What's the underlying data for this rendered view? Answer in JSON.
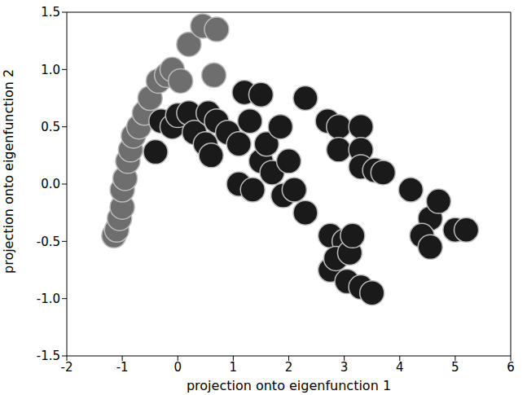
{
  "chart_data": {
    "type": "scatter",
    "x_label": "projection onto eigenfunction 1",
    "y_label": "projection onto eigenfunction 2",
    "marker": "circle",
    "grid": false,
    "x": [
      -1.15,
      -1.1,
      -1.05,
      -1.0,
      -1.0,
      -0.95,
      -0.9,
      -0.85,
      -0.8,
      -0.7,
      -0.6,
      -0.5,
      -0.35,
      -0.2,
      -0.1,
      0.2,
      0.45,
      0.7,
      0.65,
      0.05,
      -0.4,
      -0.3,
      -0.1,
      0.0,
      0.2,
      0.3,
      0.5,
      0.55,
      0.7,
      0.6,
      0.9,
      1.1,
      1.2,
      1.5,
      1.3,
      1.5,
      1.1,
      1.35,
      1.6,
      1.7,
      1.85,
      1.9,
      2.0,
      2.1,
      2.3,
      2.75,
      2.75,
      3.0,
      2.85,
      3.1,
      3.05,
      3.3,
      3.5,
      3.15,
      2.3,
      2.7,
      2.9,
      3.3,
      2.9,
      3.3,
      3.3,
      3.55,
      3.7,
      4.2,
      4.55,
      4.7,
      4.4,
      4.55,
      5.0,
      5.2
    ],
    "values": [
      -0.45,
      -0.4,
      -0.3,
      -0.2,
      -0.05,
      0.05,
      0.2,
      0.3,
      0.42,
      0.5,
      0.62,
      0.75,
      0.9,
      0.95,
      1.0,
      1.22,
      1.38,
      1.35,
      0.95,
      0.9,
      0.28,
      0.55,
      0.5,
      0.6,
      0.62,
      0.45,
      0.35,
      0.62,
      0.55,
      0.25,
      0.45,
      0.35,
      0.8,
      0.78,
      0.55,
      0.2,
      0.0,
      -0.05,
      0.35,
      0.1,
      0.5,
      -0.1,
      0.2,
      -0.05,
      -0.25,
      -0.45,
      -0.75,
      -0.5,
      -0.65,
      -0.6,
      -0.85,
      -0.9,
      -0.95,
      -0.45,
      0.75,
      0.55,
      0.5,
      0.5,
      0.3,
      0.3,
      0.15,
      0.12,
      0.1,
      -0.05,
      -0.3,
      -0.15,
      -0.45,
      -0.55,
      -0.4,
      -0.4
    ],
    "colors": [
      "#6e6e6e",
      "#6e6e6e",
      "#6e6e6e",
      "#6e6e6e",
      "#6e6e6e",
      "#6e6e6e",
      "#6e6e6e",
      "#6e6e6e",
      "#6e6e6e",
      "#6e6e6e",
      "#6e6e6e",
      "#6e6e6e",
      "#6e6e6e",
      "#6e6e6e",
      "#6e6e6e",
      "#6e6e6e",
      "#6e6e6e",
      "#6e6e6e",
      "#6e6e6e",
      "#6e6e6e",
      "#1a1a1a",
      "#1a1a1a",
      "#1a1a1a",
      "#1a1a1a",
      "#1a1a1a",
      "#1a1a1a",
      "#1a1a1a",
      "#1a1a1a",
      "#1a1a1a",
      "#1a1a1a",
      "#1a1a1a",
      "#1a1a1a",
      "#1a1a1a",
      "#1a1a1a",
      "#1a1a1a",
      "#1a1a1a",
      "#1a1a1a",
      "#1a1a1a",
      "#1a1a1a",
      "#1a1a1a",
      "#1a1a1a",
      "#1a1a1a",
      "#1a1a1a",
      "#1a1a1a",
      "#1a1a1a",
      "#1a1a1a",
      "#1a1a1a",
      "#1a1a1a",
      "#1a1a1a",
      "#1a1a1a",
      "#1a1a1a",
      "#1a1a1a",
      "#1a1a1a",
      "#1a1a1a",
      "#1a1a1a",
      "#1a1a1a",
      "#1a1a1a",
      "#1a1a1a",
      "#1a1a1a",
      "#1a1a1a",
      "#1a1a1a",
      "#1a1a1a",
      "#1a1a1a",
      "#1a1a1a",
      "#1a1a1a",
      "#1a1a1a",
      "#1a1a1a",
      "#1a1a1a",
      "#1a1a1a",
      "#1a1a1a"
    ],
    "xlim": [
      -2,
      6
    ],
    "xticks": [
      -2,
      -1,
      0,
      1,
      2,
      3,
      4,
      5,
      6
    ],
    "ylim": [
      -1.5,
      1.5
    ],
    "yticks": [
      -1.5,
      {
        "value": -1,
        "label": "-1.0"
      },
      -0.5,
      {
        "value": 0,
        "label": "0.0"
      },
      0.5,
      {
        "value": 1,
        "label": "1.0"
      },
      1.5
    ]
  }
}
